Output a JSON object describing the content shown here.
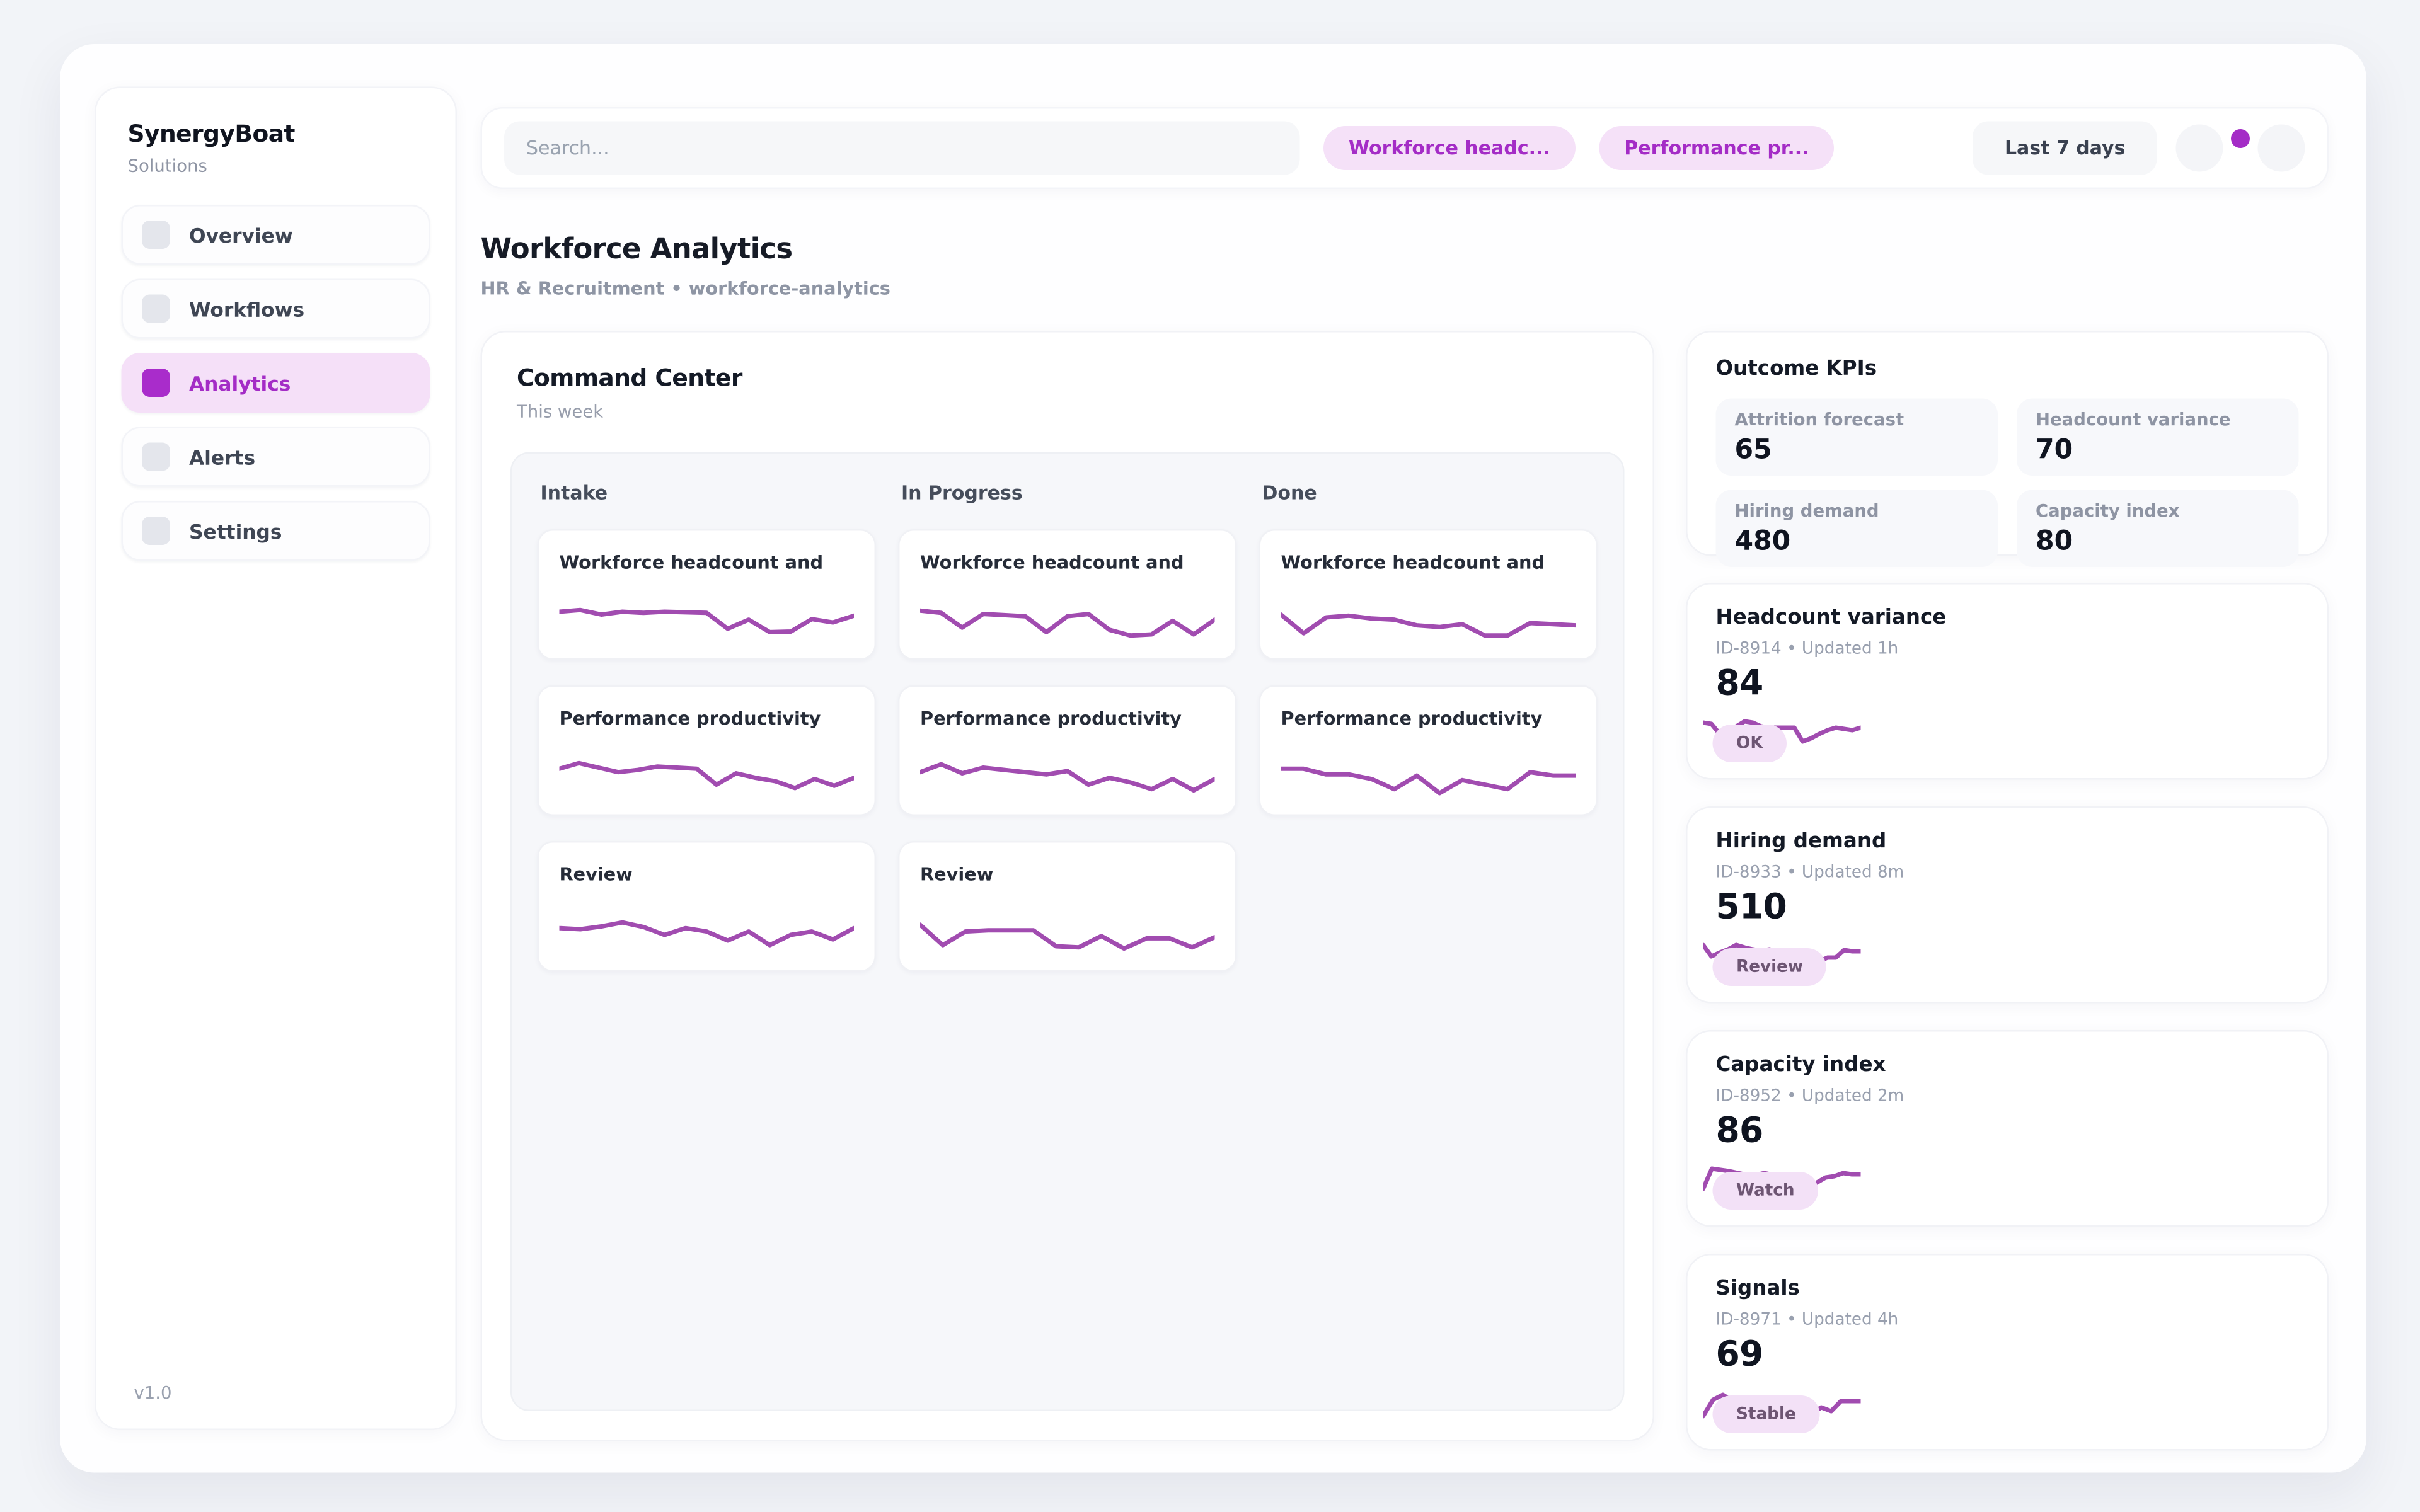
{
  "colors": {
    "accent": "#a42cc6",
    "accent_soft": "#f5e0f8",
    "spark": "#a14cb0"
  },
  "sidebar": {
    "brand": "SynergyBoat",
    "subtitle": "Solutions",
    "version": "v1.0",
    "items": [
      {
        "label": "Overview",
        "active": false
      },
      {
        "label": "Workflows",
        "active": false
      },
      {
        "label": "Analytics",
        "active": true
      },
      {
        "label": "Alerts",
        "active": false
      },
      {
        "label": "Settings",
        "active": false
      }
    ]
  },
  "topbar": {
    "search_placeholder": "Search...",
    "filters": [
      {
        "label": "Workforce headc..."
      },
      {
        "label": "Performance pr..."
      }
    ],
    "range_label": "Last 7 days"
  },
  "page": {
    "title": "Workforce Analytics",
    "breadcrumb": "HR & Recruitment • workforce-analytics"
  },
  "board": {
    "title": "Command Center",
    "subtitle": "This week",
    "columns": [
      {
        "title": "Intake",
        "cards": [
          {
            "title": "Workforce headcount and",
            "spark": [
              60,
              63,
              55,
              60,
              58,
              60,
              59,
              58,
              30,
              46,
              24,
              25,
              47,
              41,
              53
            ]
          },
          {
            "title": "Performance productivity",
            "spark": [
              58,
              68,
              60,
              52,
              56,
              62,
              60,
              58,
              30,
              50,
              42,
              36,
              24,
              40,
              28,
              42
            ]
          },
          {
            "title": "Review",
            "spark": [
              52,
              50,
              55,
              62,
              54,
              40,
              52,
              46,
              30,
              46,
              22,
              40,
              46,
              32,
              52
            ]
          }
        ]
      },
      {
        "title": "In Progress",
        "cards": [
          {
            "title": "Workforce headcount and",
            "spark": [
              62,
              58,
              32,
              56,
              54,
              52,
              24,
              52,
              56,
              28,
              18,
              20,
              44,
              20,
              46
            ]
          },
          {
            "title": "Performance productivity",
            "spark": [
              52,
              66,
              50,
              60,
              56,
              52,
              48,
              54,
              30,
              42,
              34,
              22,
              40,
              20,
              40
            ]
          },
          {
            "title": "Review",
            "spark": [
              58,
              22,
              46,
              48,
              48,
              48,
              20,
              18,
              38,
              16,
              34,
              34,
              18,
              36
            ]
          }
        ]
      },
      {
        "title": "Done",
        "cards": [
          {
            "title": "Workforce headcount and",
            "spark": [
              55,
              22,
              50,
              53,
              48,
              46,
              36,
              33,
              38,
              18,
              18,
              40,
              38,
              36
            ]
          },
          {
            "title": "Performance productivity",
            "spark": [
              58,
              58,
              48,
              48,
              40,
              22,
              46,
              15,
              38,
              30,
              22,
              52,
              46,
              46
            ]
          }
        ]
      }
    ]
  },
  "kpis": {
    "title": "Outcome KPIs",
    "items": [
      {
        "label": "Attrition forecast",
        "value": "65"
      },
      {
        "label": "Headcount variance",
        "value": "70"
      },
      {
        "label": "Hiring demand",
        "value": "480"
      },
      {
        "label": "Capacity index",
        "value": "80"
      }
    ]
  },
  "metrics": [
    {
      "title": "Headcount variance",
      "meta": "ID-8914 • Updated 1h",
      "value": "84",
      "badge": "OK",
      "spark": [
        58,
        56,
        40,
        46,
        52,
        60,
        58,
        52,
        50,
        50,
        50,
        50,
        28,
        33,
        40,
        46,
        50,
        48,
        46,
        50
      ]
    },
    {
      "title": "Hiring demand",
      "meta": "ID-8933 • Updated 8m",
      "value": "510",
      "badge": "Review",
      "spark": [
        60,
        42,
        48,
        53,
        60,
        56,
        53,
        51,
        53,
        50,
        38,
        38,
        43,
        34,
        34,
        40,
        40,
        52,
        50,
        50
      ]
    },
    {
      "title": "Capacity index",
      "meta": "ID-8952 • Updated 2m",
      "value": "86",
      "badge": "Watch",
      "spark": [
        28,
        60,
        58,
        56,
        53,
        50,
        50,
        53,
        50,
        48,
        33,
        43,
        28,
        38,
        46,
        48,
        53,
        51,
        51
      ]
    },
    {
      "title": "Signals",
      "meta": "ID-8971 • Updated 4h",
      "value": "69",
      "badge": "Stable",
      "spark": [
        22,
        48,
        56,
        46,
        48,
        48,
        48,
        46,
        46,
        33,
        43,
        26,
        36,
        30,
        46,
        46,
        46
      ]
    }
  ]
}
